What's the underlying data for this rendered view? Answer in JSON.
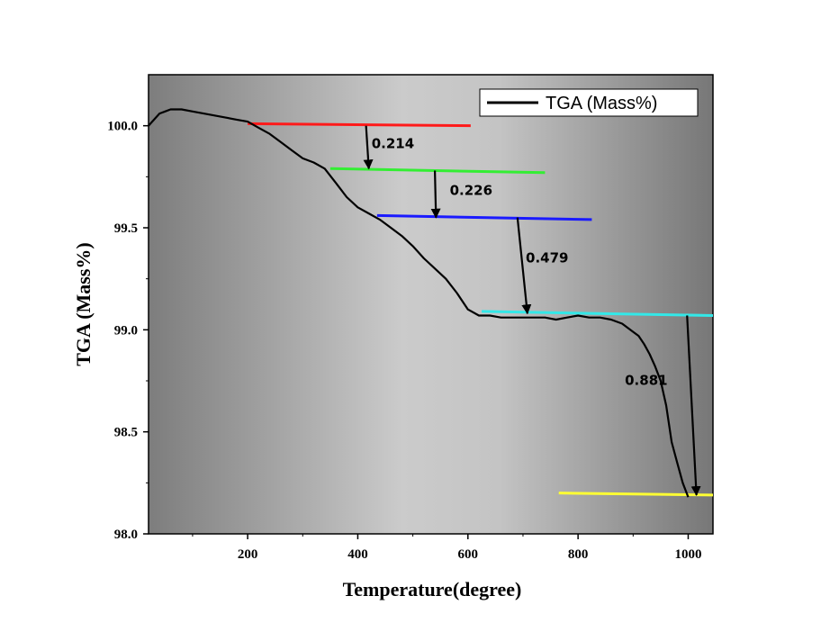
{
  "chart_data": {
    "type": "line",
    "title": "",
    "xlabel": "Temperature(degree)",
    "ylabel": "TGA (Mass%)",
    "xlim": [
      20,
      1045
    ],
    "ylim": [
      98.0,
      100.25
    ],
    "xticks": [
      200,
      400,
      600,
      800,
      1000
    ],
    "yticks": [
      98.0,
      98.5,
      99.0,
      99.5,
      100.0
    ],
    "xtick_labels": [
      "200",
      "400",
      "600",
      "800",
      "1000"
    ],
    "ytick_labels": [
      "98.0",
      "98.5",
      "99.0",
      "99.5",
      "100.0"
    ],
    "grid": false,
    "legend_position": "top-right",
    "series": [
      {
        "name": "TGA (Mass%)",
        "color": "#000000",
        "x": [
          20,
          30,
          40,
          50,
          60,
          70,
          80,
          100,
          120,
          140,
          160,
          180,
          200,
          220,
          240,
          260,
          280,
          300,
          320,
          340,
          360,
          380,
          400,
          420,
          440,
          460,
          480,
          500,
          520,
          540,
          560,
          580,
          600,
          620,
          640,
          660,
          680,
          700,
          720,
          740,
          760,
          780,
          800,
          820,
          840,
          860,
          880,
          900,
          910,
          920,
          930,
          940,
          950,
          960,
          970,
          980,
          990,
          1000
        ],
        "y": [
          100.0,
          100.03,
          100.06,
          100.07,
          100.08,
          100.08,
          100.08,
          100.07,
          100.06,
          100.05,
          100.04,
          100.03,
          100.02,
          99.99,
          99.96,
          99.92,
          99.88,
          99.84,
          99.82,
          99.79,
          99.72,
          99.65,
          99.6,
          99.57,
          99.54,
          99.5,
          99.46,
          99.41,
          99.35,
          99.3,
          99.25,
          99.18,
          99.1,
          99.07,
          99.07,
          99.06,
          99.06,
          99.06,
          99.06,
          99.06,
          99.05,
          99.06,
          99.07,
          99.06,
          99.06,
          99.05,
          99.03,
          98.99,
          98.97,
          98.93,
          98.88,
          98.82,
          98.75,
          98.63,
          98.45,
          98.35,
          98.25,
          98.18
        ]
      }
    ],
    "baselines": [
      {
        "color": "#ff1a1a",
        "x": [
          200,
          605
        ],
        "y": [
          100.01,
          100.0
        ]
      },
      {
        "color": "#33ee33",
        "x": [
          350,
          740
        ],
        "y": [
          99.79,
          99.77
        ]
      },
      {
        "color": "#1a1aff",
        "x": [
          435,
          825
        ],
        "y": [
          99.56,
          99.54
        ]
      },
      {
        "color": "#33e8e8",
        "x": [
          625,
          1045
        ],
        "y": [
          99.09,
          99.07
        ]
      },
      {
        "color": "#ffff33",
        "x": [
          765,
          1045
        ],
        "y": [
          98.2,
          98.19
        ]
      }
    ],
    "steps": [
      {
        "label": "0.214",
        "x1": 415,
        "y1": 100.0,
        "x2": 420,
        "y2": 99.79,
        "label_x": 425,
        "label_y": 99.89
      },
      {
        "label": "0.226",
        "x1": 540,
        "y1": 99.78,
        "x2": 542,
        "y2": 99.55,
        "label_x": 567,
        "label_y": 99.66
      },
      {
        "label": "0.479",
        "x1": 690,
        "y1": 99.55,
        "x2": 708,
        "y2": 99.08,
        "label_x": 705,
        "label_y": 99.33
      },
      {
        "label": "0.881",
        "x1": 998,
        "y1": 99.07,
        "x2": 1015,
        "y2": 98.19,
        "label_x": 885,
        "label_y": 98.73
      }
    ]
  }
}
